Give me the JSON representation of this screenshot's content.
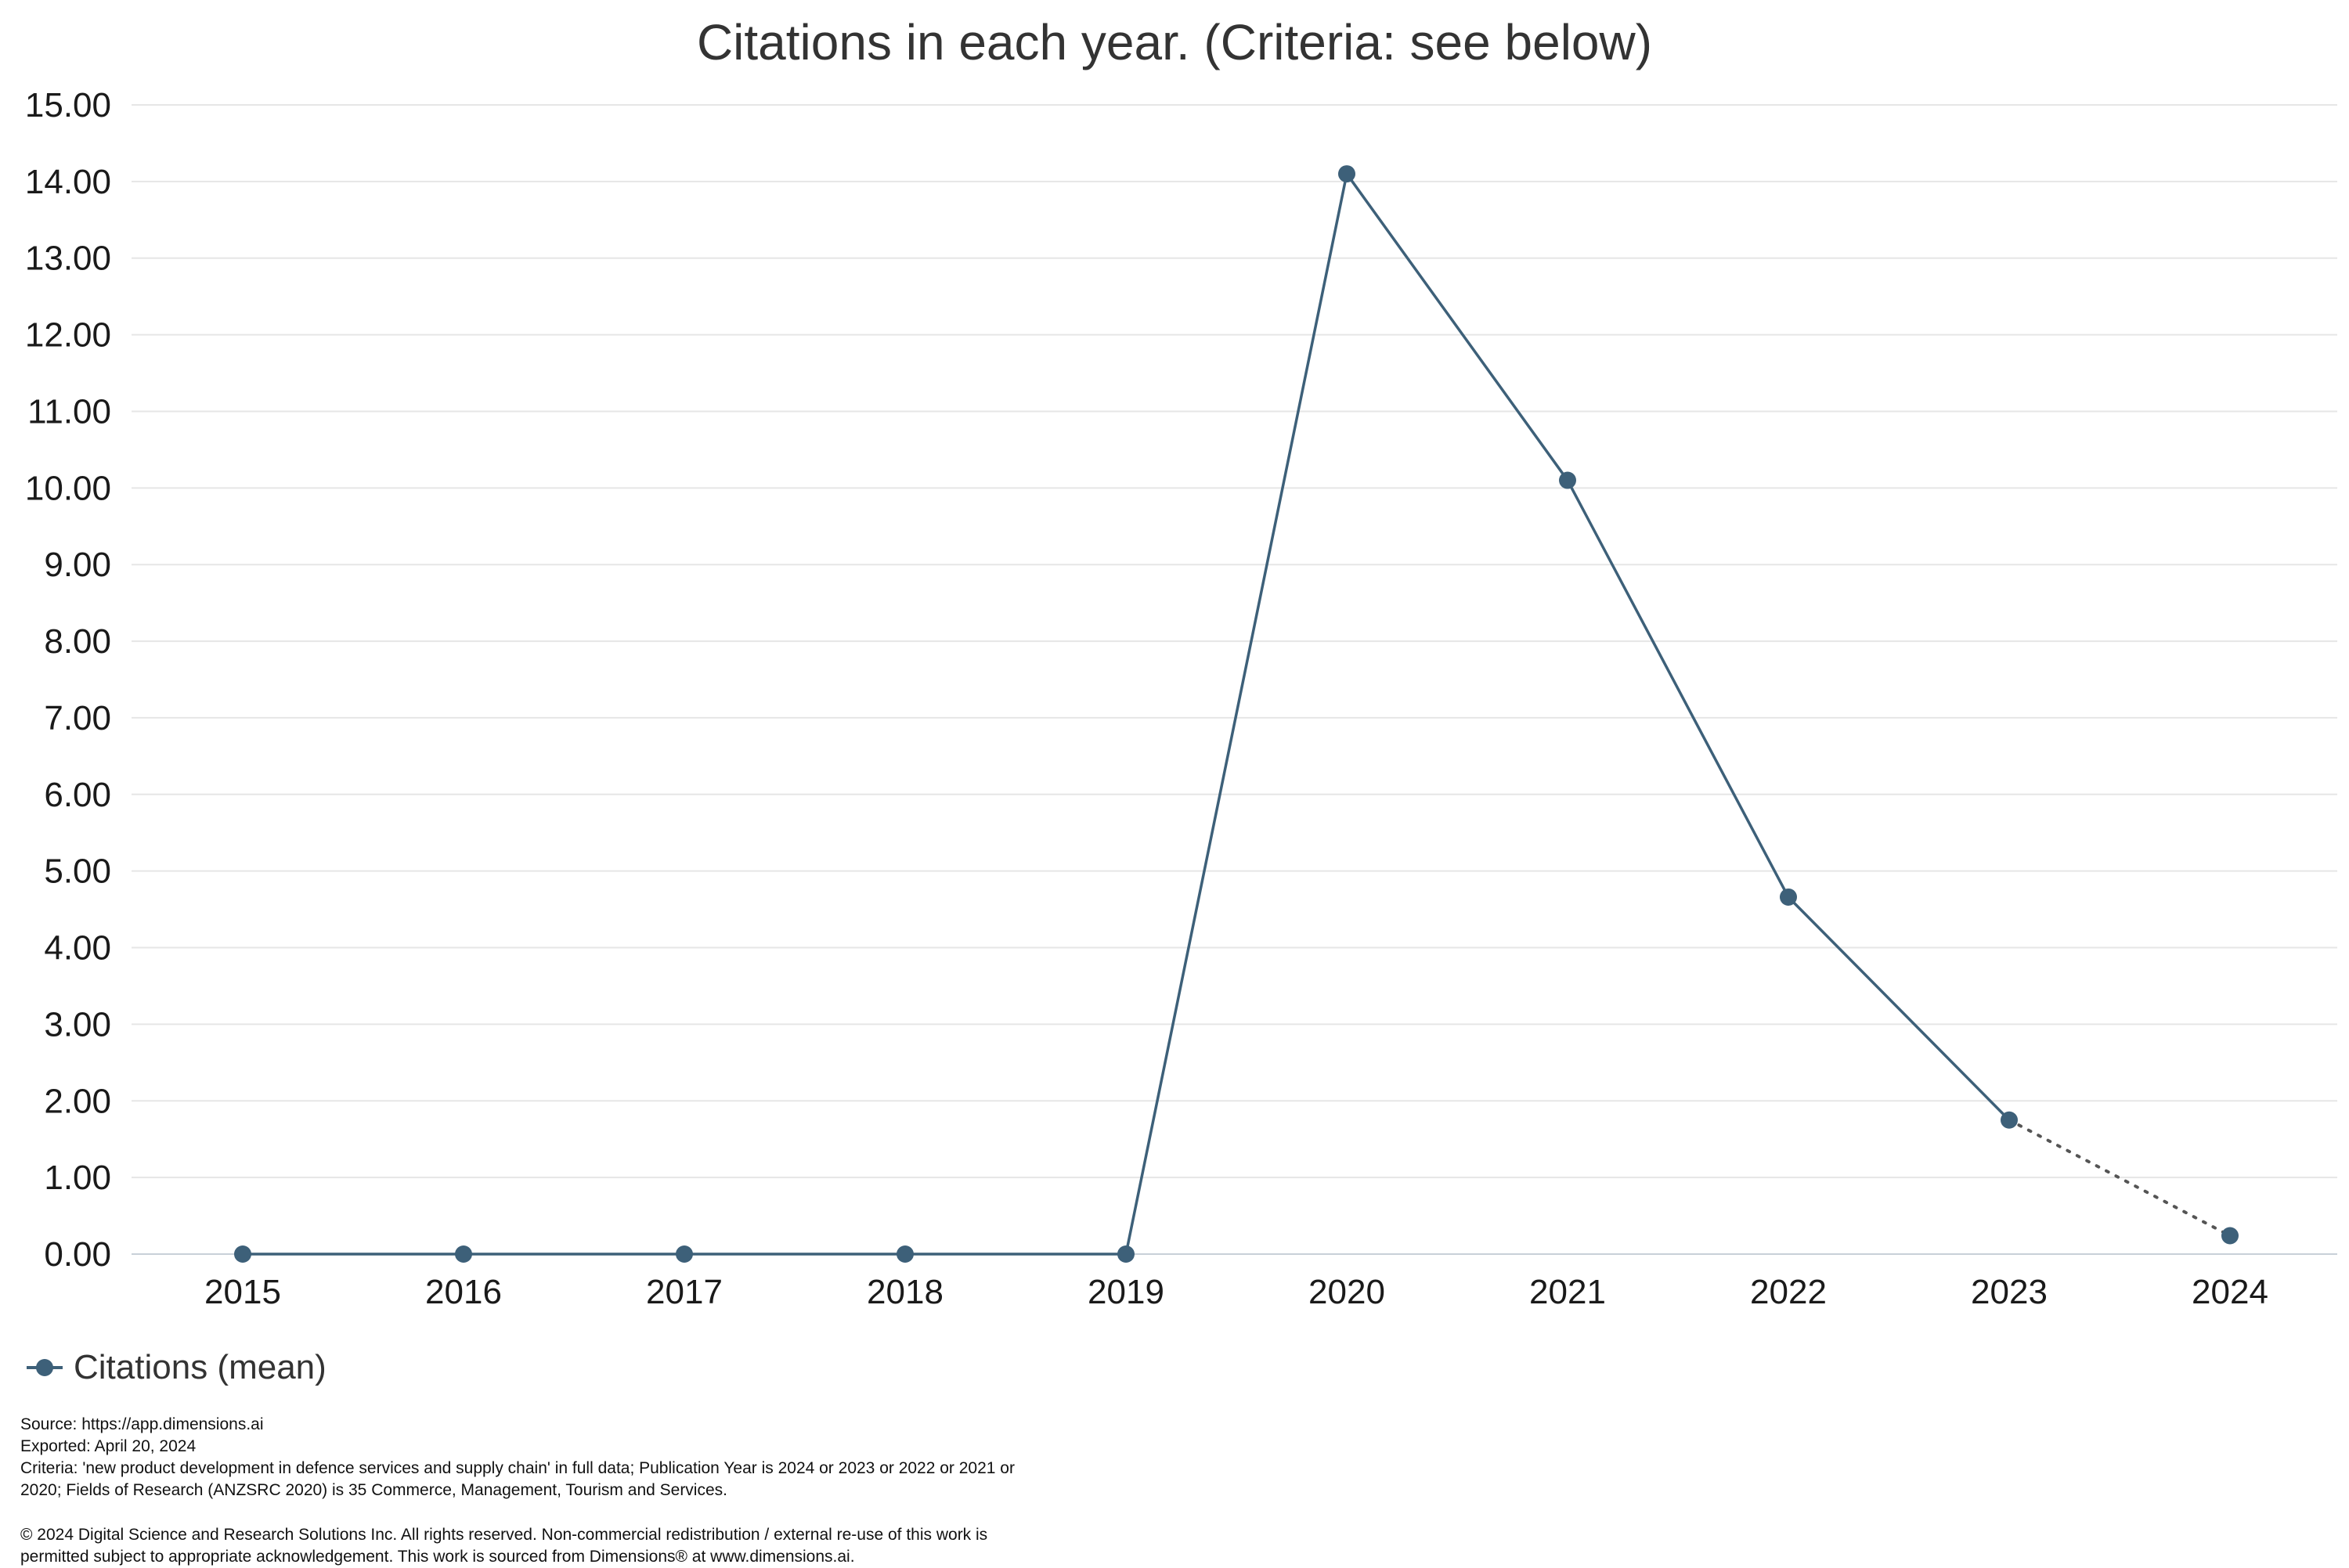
{
  "chart_data": {
    "type": "line",
    "title": "Citations in each year. (Criteria: see below)",
    "xlabel": "",
    "ylabel": "",
    "categories": [
      "2015",
      "2016",
      "2017",
      "2018",
      "2019",
      "2020",
      "2021",
      "2022",
      "2023",
      "2024"
    ],
    "series": [
      {
        "name": "Citations (mean)",
        "values": [
          0.0,
          0.0,
          0.0,
          0.0,
          0.0,
          14.1,
          10.1,
          4.66,
          1.75,
          0.24
        ],
        "color": "#3d6079",
        "dotted_last_segment": true
      }
    ],
    "ylim": [
      0,
      15
    ],
    "yticks": [
      "0.00",
      "1.00",
      "2.00",
      "3.00",
      "4.00",
      "5.00",
      "6.00",
      "7.00",
      "8.00",
      "9.00",
      "10.00",
      "11.00",
      "12.00",
      "13.00",
      "14.00",
      "15.00"
    ],
    "grid": true,
    "gridline_color": "#e6e6e6",
    "legend_position": "bottom-left"
  },
  "footer": {
    "source": "Source: https://app.dimensions.ai",
    "exported": "Exported: April 20, 2024",
    "criteria_line1": "Criteria: 'new product development in defence services and supply chain' in full data; Publication Year is 2024 or 2023 or 2022 or 2021 or",
    "criteria_line2": "2020; Fields of Research (ANZSRC 2020) is 35 Commerce, Management, Tourism and Services.",
    "copyright_line1": "© 2024 Digital Science and Research Solutions Inc. All rights reserved. Non-commercial redistribution / external re-use of this work is",
    "copyright_line2": "permitted subject to appropriate acknowledgement. This work is sourced from Dimensions® at www.dimensions.ai."
  }
}
